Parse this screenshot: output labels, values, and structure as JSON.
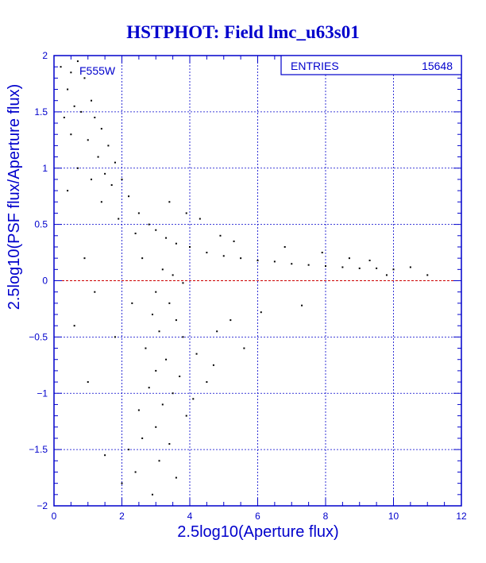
{
  "chart_data": {
    "type": "scatter",
    "title": "HSTPHOT: Field lmc_u63s01",
    "xlabel": "2.5log10(Aperture flux)",
    "ylabel": "2.5log10(PSF flux/Aperture flux)",
    "filter_label": "F555W",
    "stats": {
      "label": "ENTRIES",
      "value": "15648"
    },
    "xlim": [
      0,
      12
    ],
    "ylim": [
      -2,
      2
    ],
    "x_ticks": [
      {
        "value": 0,
        "label": "0"
      },
      {
        "value": 2,
        "label": "2"
      },
      {
        "value": 4,
        "label": "4"
      },
      {
        "value": 6,
        "label": "6"
      },
      {
        "value": 8,
        "label": "8"
      },
      {
        "value": 10,
        "label": "10"
      },
      {
        "value": 12,
        "label": "12"
      }
    ],
    "y_ticks": [
      {
        "value": -2,
        "label": "−2"
      },
      {
        "value": -1.5,
        "label": "−1.5"
      },
      {
        "value": -1,
        "label": "−1"
      },
      {
        "value": -0.5,
        "label": "−0.5"
      },
      {
        "value": 0,
        "label": "0"
      },
      {
        "value": 0.5,
        "label": "0.5"
      },
      {
        "value": 1,
        "label": "1"
      },
      {
        "value": 1.5,
        "label": "1.5"
      },
      {
        "value": 2,
        "label": "2"
      }
    ],
    "grid": true,
    "reference_line": {
      "y": 0,
      "style": "dashed"
    },
    "colors": {
      "axis": "#0000cc",
      "grid": "#0000cc",
      "points": "#000000",
      "reference_line": "#cc0000",
      "background": "#ffffff"
    },
    "points": [
      [
        0.2,
        1.9
      ],
      [
        0.5,
        1.85
      ],
      [
        0.7,
        1.95
      ],
      [
        0.4,
        1.7
      ],
      [
        0.9,
        1.8
      ],
      [
        1.1,
        1.6
      ],
      [
        0.6,
        1.55
      ],
      [
        0.3,
        1.45
      ],
      [
        0.8,
        1.5
      ],
      [
        1.2,
        1.45
      ],
      [
        1.4,
        1.35
      ],
      [
        0.5,
        1.3
      ],
      [
        1.0,
        1.25
      ],
      [
        1.6,
        1.2
      ],
      [
        1.3,
        1.1
      ],
      [
        1.8,
        1.05
      ],
      [
        0.7,
        1.0
      ],
      [
        1.5,
        0.95
      ],
      [
        2.0,
        0.9
      ],
      [
        1.1,
        0.9
      ],
      [
        1.7,
        0.85
      ],
      [
        2.2,
        0.75
      ],
      [
        1.4,
        0.7
      ],
      [
        2.5,
        0.6
      ],
      [
        1.9,
        0.55
      ],
      [
        2.8,
        0.5
      ],
      [
        3.0,
        0.45
      ],
      [
        2.4,
        0.42
      ],
      [
        3.3,
        0.38
      ],
      [
        3.6,
        0.33
      ],
      [
        4.0,
        0.3
      ],
      [
        4.5,
        0.25
      ],
      [
        5.0,
        0.22
      ],
      [
        5.5,
        0.2
      ],
      [
        6.0,
        0.18
      ],
      [
        6.5,
        0.17
      ],
      [
        7.0,
        0.15
      ],
      [
        7.5,
        0.14
      ],
      [
        8.0,
        0.13
      ],
      [
        8.5,
        0.12
      ],
      [
        9.0,
        0.11
      ],
      [
        9.5,
        0.11
      ],
      [
        10.0,
        0.1
      ],
      [
        10.5,
        0.12
      ],
      [
        11.0,
        0.05
      ],
      [
        3.2,
        0.1
      ],
      [
        3.5,
        0.05
      ],
      [
        3.8,
        -0.02
      ],
      [
        3.0,
        -0.1
      ],
      [
        3.4,
        -0.2
      ],
      [
        2.9,
        -0.3
      ],
      [
        3.6,
        -0.35
      ],
      [
        3.1,
        -0.45
      ],
      [
        3.8,
        -0.5
      ],
      [
        2.7,
        -0.6
      ],
      [
        3.3,
        -0.7
      ],
      [
        4.2,
        -0.65
      ],
      [
        3.0,
        -0.8
      ],
      [
        3.7,
        -0.85
      ],
      [
        2.8,
        -0.95
      ],
      [
        3.5,
        -1.0
      ],
      [
        4.5,
        -0.9
      ],
      [
        3.2,
        -1.1
      ],
      [
        2.5,
        -1.15
      ],
      [
        3.9,
        -1.2
      ],
      [
        3.0,
        -1.3
      ],
      [
        2.6,
        -1.4
      ],
      [
        3.4,
        -1.45
      ],
      [
        2.2,
        -1.5
      ],
      [
        3.1,
        -1.6
      ],
      [
        2.4,
        -1.7
      ],
      [
        3.6,
        -1.75
      ],
      [
        2.0,
        -1.8
      ],
      [
        2.9,
        -1.9
      ],
      [
        1.5,
        -1.55
      ],
      [
        1.0,
        -0.9
      ],
      [
        0.6,
        -0.4
      ],
      [
        1.2,
        -0.1
      ],
      [
        0.9,
        0.2
      ],
      [
        0.4,
        0.8
      ],
      [
        5.2,
        -0.35
      ],
      [
        6.1,
        -0.28
      ],
      [
        7.3,
        -0.22
      ],
      [
        4.8,
        -0.45
      ],
      [
        5.6,
        -0.6
      ],
      [
        6.8,
        0.3
      ],
      [
        7.9,
        0.25
      ],
      [
        8.7,
        0.2
      ],
      [
        9.3,
        0.18
      ],
      [
        4.3,
        0.55
      ],
      [
        4.9,
        0.4
      ],
      [
        5.3,
        0.35
      ],
      [
        3.9,
        0.6
      ],
      [
        3.4,
        0.7
      ],
      [
        2.6,
        0.2
      ],
      [
        2.3,
        -0.2
      ],
      [
        1.8,
        -0.5
      ],
      [
        4.1,
        -1.05
      ],
      [
        4.7,
        -0.75
      ],
      [
        9.8,
        0.05
      ]
    ]
  }
}
